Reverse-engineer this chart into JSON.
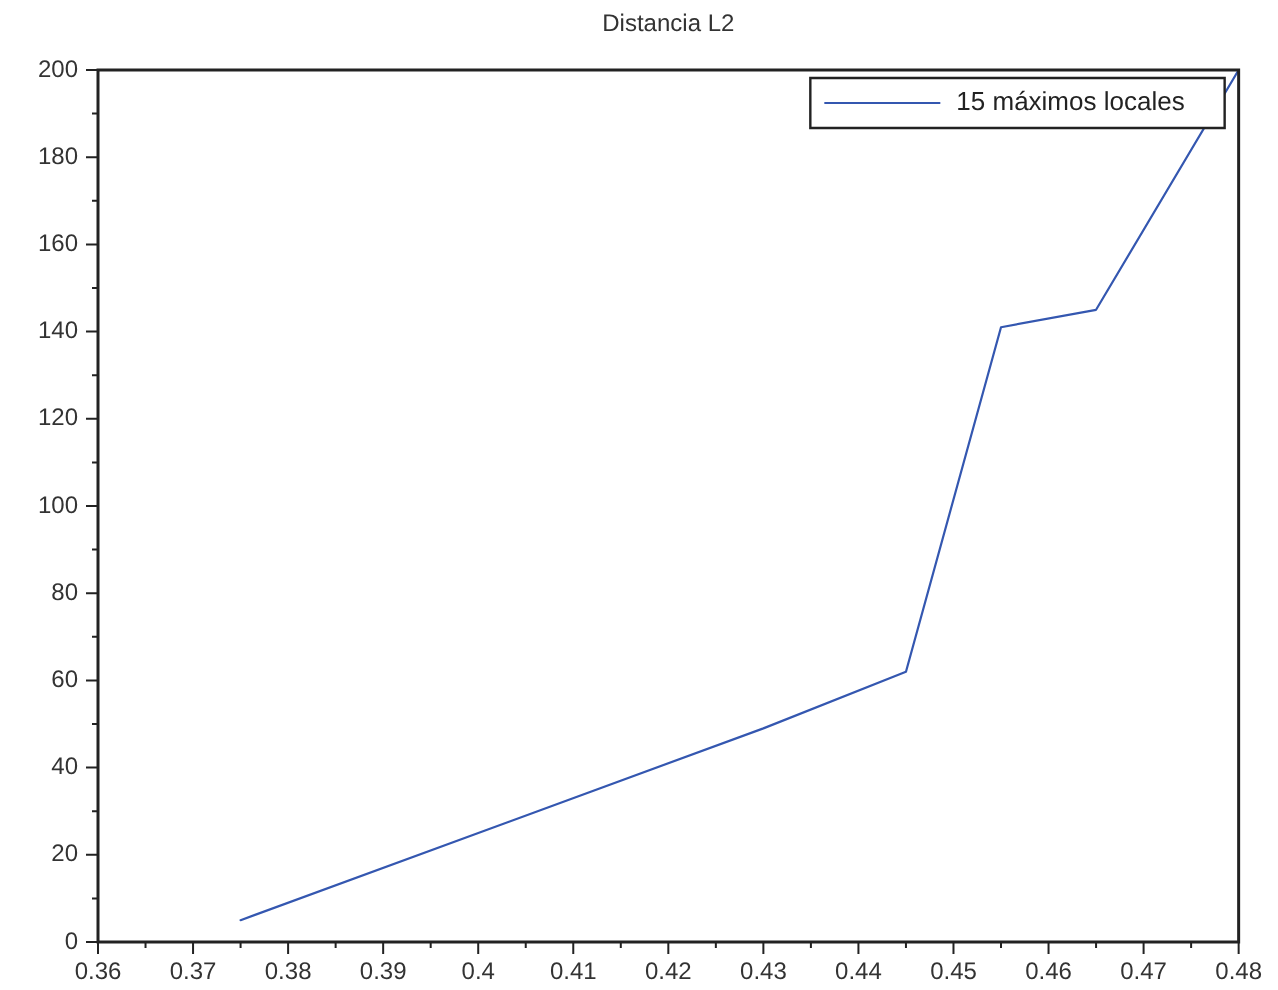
{
  "chart_data": {
    "type": "line",
    "title": "Distancia L2",
    "x": [
      0.375,
      0.43,
      0.445,
      0.455,
      0.465,
      0.48
    ],
    "series": [
      {
        "name": "15 máximos locales",
        "color": "#3457b0",
        "values": [
          5,
          49,
          62,
          141,
          145,
          200
        ]
      }
    ],
    "xlim": [
      0.36,
      0.48
    ],
    "xticks": [
      0.36,
      {
        "value": 0.365,
        "label": null
      },
      0.37,
      {
        "value": 0.375,
        "label": null
      },
      0.38,
      {
        "value": 0.385,
        "label": null
      },
      0.39,
      {
        "value": 0.395,
        "label": null
      },
      0.4,
      {
        "value": 0.405,
        "label": null
      },
      0.41,
      {
        "value": 0.415,
        "label": null
      },
      0.42,
      {
        "value": 0.425,
        "label": null
      },
      0.43,
      {
        "value": 0.435,
        "label": null
      },
      0.44,
      {
        "value": 0.445,
        "label": null
      },
      0.45,
      {
        "value": 0.455,
        "label": null
      },
      0.46,
      {
        "value": 0.465,
        "label": null
      },
      0.47,
      {
        "value": 0.475,
        "label": null
      },
      0.48
    ],
    "ylim": [
      0,
      200
    ],
    "yticks": [
      0,
      {
        "value": 10,
        "label": null
      },
      20,
      {
        "value": 30,
        "label": null
      },
      40,
      {
        "value": 50,
        "label": null
      },
      60,
      {
        "value": 70,
        "label": null
      },
      80,
      {
        "value": 90,
        "label": null
      },
      100,
      {
        "value": 110,
        "label": null
      },
      120,
      {
        "value": 130,
        "label": null
      },
      140,
      {
        "value": 150,
        "label": null
      },
      160,
      {
        "value": 170,
        "label": null
      },
      180,
      {
        "value": 190,
        "label": null
      },
      200
    ],
    "legend": "top right",
    "marker": "none",
    "line_style": "solid"
  }
}
